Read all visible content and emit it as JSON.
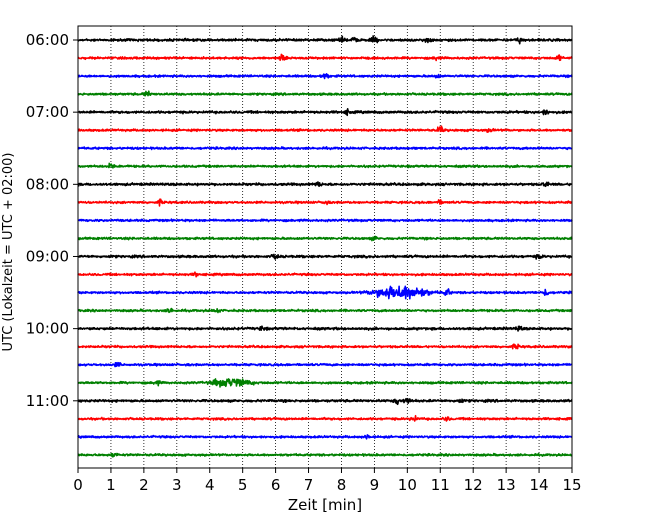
{
  "chart_data": {
    "type": "line",
    "title": "",
    "xlabel": "Zeit  [min]",
    "ylabel": "UTC (Lokalzeit = UTC + 02:00)",
    "xlim": [
      0,
      15
    ],
    "x_ticks": [
      "0",
      "1",
      "2",
      "3",
      "4",
      "5",
      "6",
      "7",
      "8",
      "9",
      "10",
      "11",
      "12",
      "13",
      "14",
      "15"
    ],
    "y_ticks": [
      {
        "label": "06:00",
        "row": 0
      },
      {
        "label": "07:00",
        "row": 4
      },
      {
        "label": "08:00",
        "row": 8
      },
      {
        "label": "09:00",
        "row": 12
      },
      {
        "label": "10:00",
        "row": 16
      },
      {
        "label": "11:00",
        "row": 20
      }
    ],
    "grid": "vertical-dotted",
    "rows_per_hour": 4,
    "minutes_per_row": 15,
    "traces": [
      {
        "start": "06:00",
        "color": "#000000",
        "amplitude": 1.0,
        "events": [
          {
            "t": 8.0,
            "amp": 2.0
          },
          {
            "t": 8.4,
            "amp": 2.0
          },
          {
            "t": 9.0,
            "amp": 2.5
          },
          {
            "t": 10.6,
            "amp": 2.0
          },
          {
            "t": 13.4,
            "amp": 2.5
          }
        ]
      },
      {
        "start": "06:15",
        "color": "#ff0000",
        "amplitude": 0.9,
        "events": [
          {
            "t": 6.2,
            "amp": 3.0
          },
          {
            "t": 10.9,
            "amp": 1.8
          },
          {
            "t": 14.6,
            "amp": 2.2
          }
        ]
      },
      {
        "start": "06:30",
        "color": "#0000ff",
        "amplitude": 0.9,
        "events": [
          {
            "t": 7.5,
            "amp": 3.0
          },
          {
            "t": 10.9,
            "amp": 1.5
          }
        ]
      },
      {
        "start": "06:45",
        "color": "#008000",
        "amplitude": 0.9,
        "events": [
          {
            "t": 2.1,
            "amp": 2.5
          }
        ]
      },
      {
        "start": "07:00",
        "color": "#000000",
        "amplitude": 1.0,
        "events": [
          {
            "t": 8.2,
            "amp": 2.0
          },
          {
            "t": 14.2,
            "amp": 2.2
          }
        ]
      },
      {
        "start": "07:15",
        "color": "#ff0000",
        "amplitude": 0.9,
        "events": [
          {
            "t": 11.0,
            "amp": 3.0
          },
          {
            "t": 12.5,
            "amp": 1.5
          }
        ]
      },
      {
        "start": "07:30",
        "color": "#0000ff",
        "amplitude": 0.9,
        "events": []
      },
      {
        "start": "07:45",
        "color": "#008000",
        "amplitude": 0.9,
        "events": [
          {
            "t": 1.0,
            "amp": 2.5
          }
        ]
      },
      {
        "start": "08:00",
        "color": "#000000",
        "amplitude": 1.0,
        "events": [
          {
            "t": 7.3,
            "amp": 2.0
          },
          {
            "t": 14.2,
            "amp": 2.0
          }
        ]
      },
      {
        "start": "08:15",
        "color": "#ff0000",
        "amplitude": 0.9,
        "events": [
          {
            "t": 2.5,
            "amp": 1.8
          },
          {
            "t": 7.5,
            "amp": 1.5
          },
          {
            "t": 11.0,
            "amp": 1.8
          }
        ]
      },
      {
        "start": "08:30",
        "color": "#0000ff",
        "amplitude": 0.9,
        "events": []
      },
      {
        "start": "08:45",
        "color": "#008000",
        "amplitude": 0.9,
        "events": [
          {
            "t": 9.0,
            "amp": 1.5
          }
        ]
      },
      {
        "start": "09:00",
        "color": "#000000",
        "amplitude": 1.0,
        "events": [
          {
            "t": 6.0,
            "amp": 2.5
          },
          {
            "t": 14.0,
            "amp": 1.8
          }
        ]
      },
      {
        "start": "09:15",
        "color": "#ff0000",
        "amplitude": 0.9,
        "events": [
          {
            "t": 3.6,
            "amp": 1.5
          }
        ]
      },
      {
        "start": "09:30",
        "color": "#0000ff",
        "amplitude": 0.9,
        "events": [
          {
            "t": 9.4,
            "amp": 4.0
          },
          {
            "t": 10.1,
            "amp": 5.0
          },
          {
            "t": 11.2,
            "amp": 3.0
          },
          {
            "t": 14.2,
            "amp": 3.0
          }
        ]
      },
      {
        "start": "09:45",
        "color": "#008000",
        "amplitude": 0.9,
        "events": [
          {
            "t": 2.8,
            "amp": 2.0
          },
          {
            "t": 4.2,
            "amp": 1.8
          }
        ]
      },
      {
        "start": "10:00",
        "color": "#000000",
        "amplitude": 1.0,
        "events": [
          {
            "t": 5.6,
            "amp": 1.8
          },
          {
            "t": 13.4,
            "amp": 1.8
          }
        ]
      },
      {
        "start": "10:15",
        "color": "#ff0000",
        "amplitude": 0.9,
        "events": [
          {
            "t": 13.3,
            "amp": 2.2
          }
        ]
      },
      {
        "start": "10:30",
        "color": "#0000ff",
        "amplitude": 0.9,
        "events": [
          {
            "t": 1.2,
            "amp": 1.8
          }
        ]
      },
      {
        "start": "10:45",
        "color": "#008000",
        "amplitude": 0.9,
        "events": [
          {
            "t": 2.4,
            "amp": 2.0
          },
          {
            "t": 4.2,
            "amp": 1.8
          },
          {
            "t": 4.7,
            "amp": 3.5
          }
        ]
      },
      {
        "start": "11:00",
        "color": "#000000",
        "amplitude": 1.0,
        "events": [
          {
            "t": 9.7,
            "amp": 3.0
          },
          {
            "t": 10.0,
            "amp": 3.0
          },
          {
            "t": 11.6,
            "amp": 1.8
          }
        ]
      },
      {
        "start": "11:15",
        "color": "#ff0000",
        "amplitude": 0.9,
        "events": [
          {
            "t": 10.2,
            "amp": 2.8
          },
          {
            "t": 11.2,
            "amp": 1.5
          }
        ]
      },
      {
        "start": "11:30",
        "color": "#0000ff",
        "amplitude": 0.9,
        "events": [
          {
            "t": 8.8,
            "amp": 2.0
          }
        ]
      },
      {
        "start": "11:45",
        "color": "#008000",
        "amplitude": 0.9,
        "events": [
          {
            "t": 1.1,
            "amp": 1.8
          }
        ]
      }
    ]
  }
}
